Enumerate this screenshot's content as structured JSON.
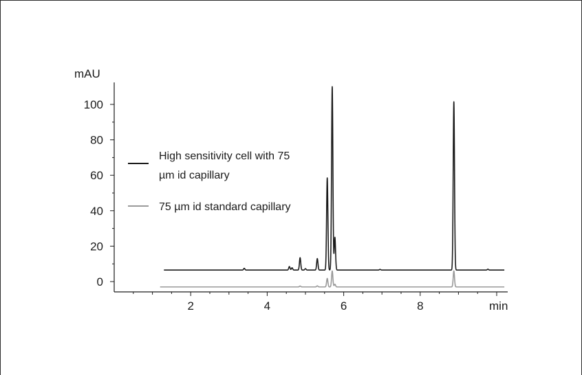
{
  "chart_data": {
    "type": "line",
    "title": "",
    "xlabel": "min",
    "ylabel": "mAU",
    "xlim": [
      0,
      10.3
    ],
    "ylim": [
      -5,
      110
    ],
    "x_ticks": [
      2,
      4,
      6,
      8
    ],
    "y_ticks": [
      0,
      20,
      40,
      60,
      80,
      100
    ],
    "x_tick_labels": [
      "2",
      "4",
      "6",
      "8"
    ],
    "y_tick_labels": [
      "0",
      "20",
      "40",
      "60",
      "80",
      "100"
    ],
    "grid": false,
    "legend_position": "left",
    "series": [
      {
        "name": "High sensitivity cell with 75 µm id capillary",
        "legend_lines": [
          "High sensitivity cell with 75",
          "µm id capillary"
        ],
        "color": "#1a1a1a",
        "baseline": 6.5,
        "x_range": [
          1.3,
          10.2
        ],
        "peaks": [
          {
            "x": 3.4,
            "y": 7.5
          },
          {
            "x": 4.58,
            "y": 8.5
          },
          {
            "x": 4.65,
            "y": 7.8
          },
          {
            "x": 4.86,
            "y": 13.5
          },
          {
            "x": 5.0,
            "y": 7.3
          },
          {
            "x": 5.31,
            "y": 13.0
          },
          {
            "x": 5.57,
            "y": 58.5
          },
          {
            "x": 5.7,
            "y": 110.0
          },
          {
            "x": 5.77,
            "y": 25.0
          },
          {
            "x": 6.95,
            "y": 6.9
          },
          {
            "x": 8.88,
            "y": 101.5
          },
          {
            "x": 9.77,
            "y": 7.0
          }
        ]
      },
      {
        "name": "75 µm id standard capillary",
        "legend_lines": [
          "75 µm id standard capillary"
        ],
        "color": "#999999",
        "baseline": -3.0,
        "x_range": [
          1.2,
          10.2
        ],
        "peaks": [
          {
            "x": 4.86,
            "y": -2.5
          },
          {
            "x": 5.31,
            "y": -2.4
          },
          {
            "x": 5.57,
            "y": 1.8
          },
          {
            "x": 5.7,
            "y": 6.0
          },
          {
            "x": 5.77,
            "y": -1.5
          },
          {
            "x": 8.88,
            "y": 6.0
          }
        ]
      }
    ]
  }
}
